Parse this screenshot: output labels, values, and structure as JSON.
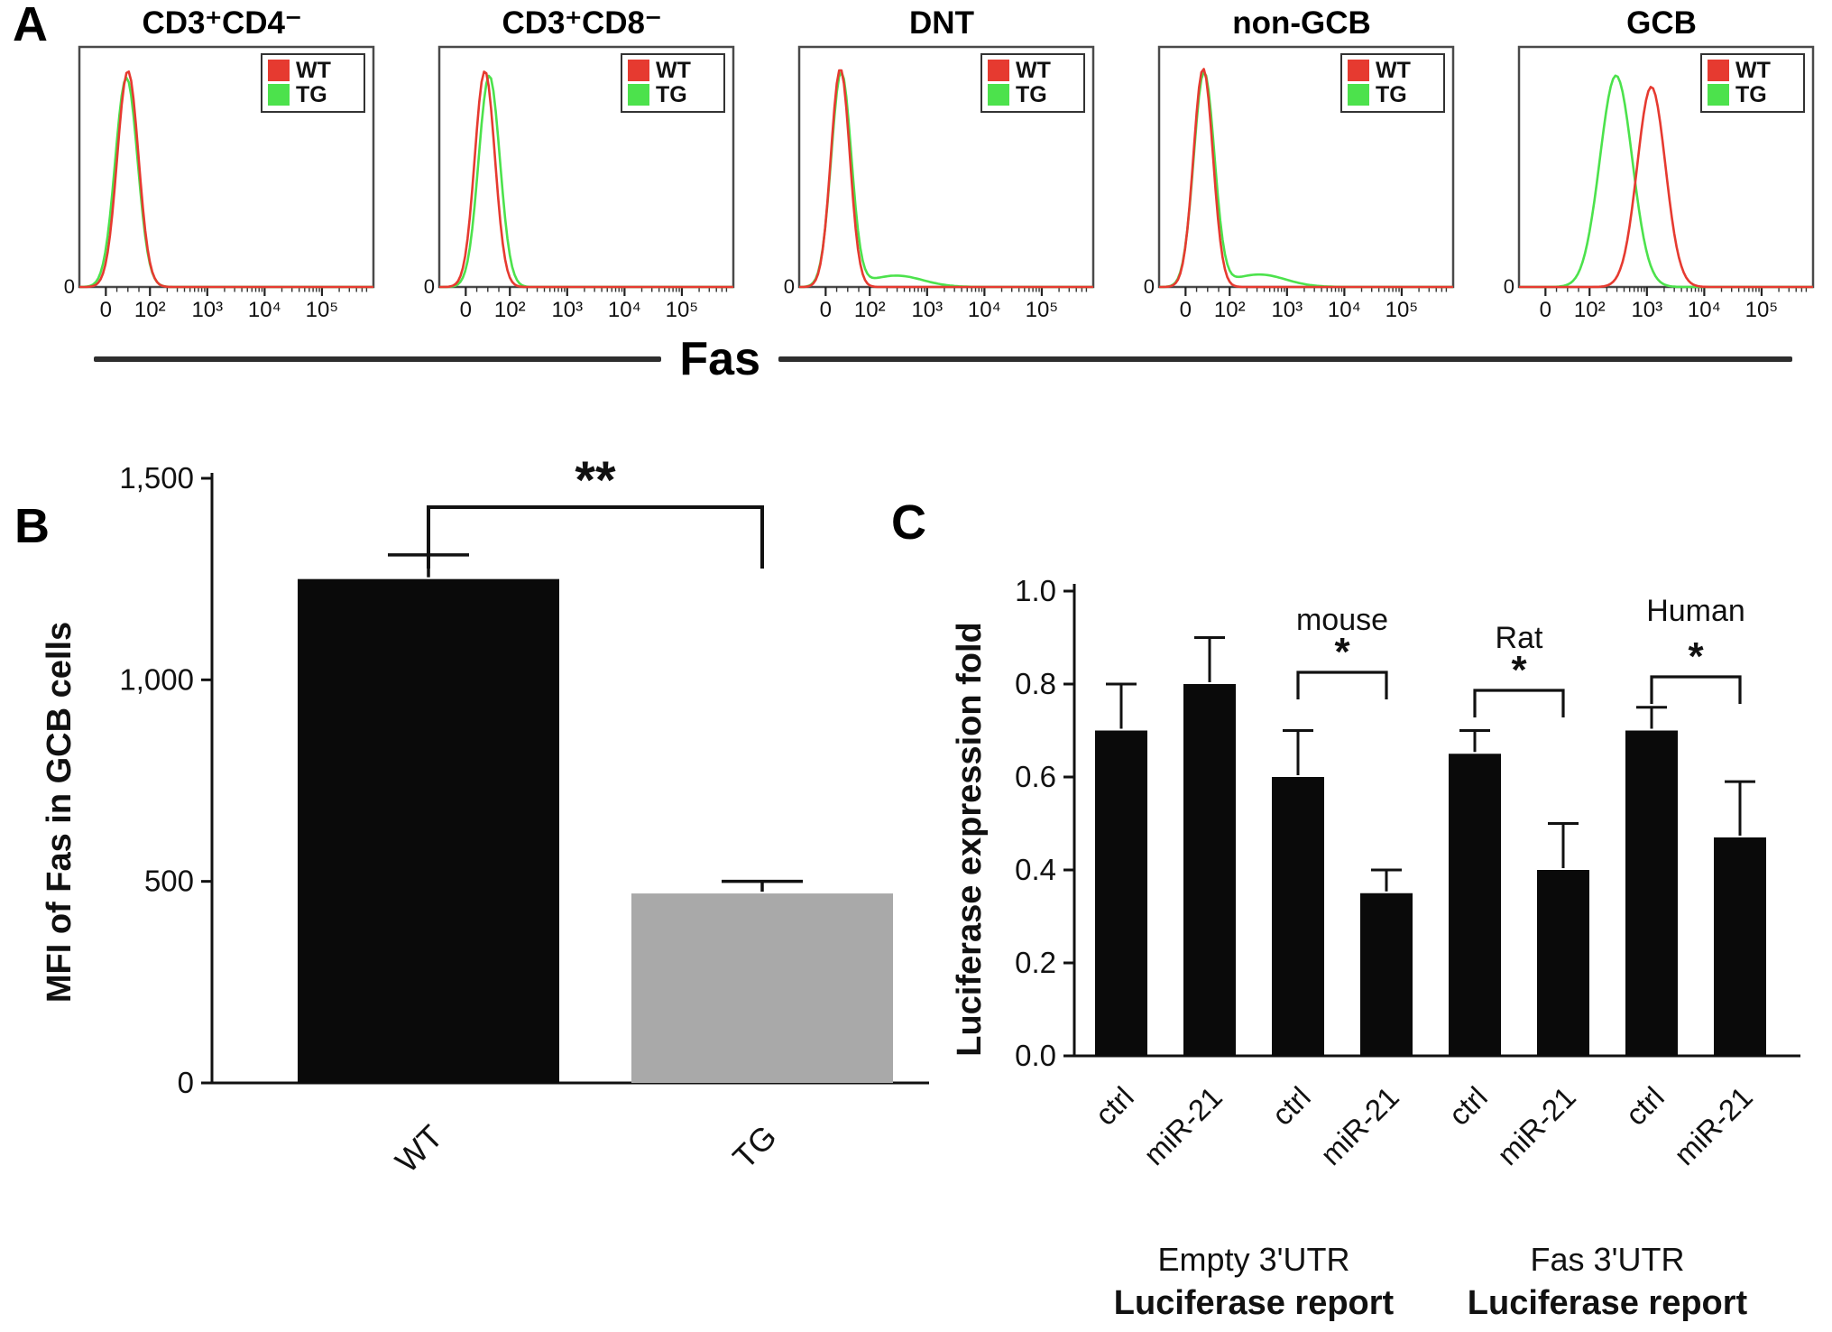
{
  "panels": {
    "a": {
      "label": "A",
      "xlabel": "Fas"
    },
    "b": {
      "label": "B"
    },
    "c": {
      "label": "C"
    }
  },
  "chart_data": [
    {
      "type": "area",
      "panel": "A",
      "xlabel": "Fas",
      "xticks": [
        "0",
        "10²",
        "10³",
        "10⁴",
        "10⁵"
      ],
      "xtick_pos": [
        9,
        24,
        43.5,
        63,
        82.5
      ],
      "ylabel_zero": "0",
      "legend": [
        {
          "name": "WT",
          "color": "#e63a30"
        },
        {
          "name": "TG",
          "color": "#4ce24c"
        }
      ],
      "subpanels": [
        {
          "title": "CD3⁺CD4⁻",
          "series": [
            {
              "name": "WT",
              "color": "#e63a30",
              "components": [
                {
                  "c": 16.5,
                  "w": 3.6,
                  "h": 0.95
                }
              ]
            },
            {
              "name": "TG",
              "color": "#4ce24c",
              "components": [
                {
                  "c": 16.0,
                  "w": 3.8,
                  "h": 0.92
                }
              ]
            }
          ]
        },
        {
          "title": "CD3⁺CD8⁻",
          "series": [
            {
              "name": "WT",
              "color": "#e63a30",
              "components": [
                {
                  "c": 15.5,
                  "w": 3.4,
                  "h": 0.95
                }
              ]
            },
            {
              "name": "TG",
              "color": "#4ce24c",
              "components": [
                {
                  "c": 17.0,
                  "w": 3.6,
                  "h": 0.93
                }
              ]
            }
          ]
        },
        {
          "title": "DNT",
          "series": [
            {
              "name": "WT",
              "color": "#e63a30",
              "components": [
                {
                  "c": 14.0,
                  "w": 3.2,
                  "h": 0.96
                }
              ]
            },
            {
              "name": "TG",
              "color": "#4ce24c",
              "components": [
                {
                  "c": 14.3,
                  "w": 3.4,
                  "h": 0.94
                },
                {
                  "c": 33,
                  "w": 9,
                  "h": 0.05
                }
              ]
            }
          ]
        },
        {
          "title": "non-GCB",
          "series": [
            {
              "name": "WT",
              "color": "#e63a30",
              "components": [
                {
                  "c": 15.0,
                  "w": 3.3,
                  "h": 0.96
                }
              ]
            },
            {
              "name": "TG",
              "color": "#4ce24c",
              "components": [
                {
                  "c": 15.3,
                  "w": 3.5,
                  "h": 0.94
                },
                {
                  "c": 34,
                  "w": 9,
                  "h": 0.055
                }
              ]
            }
          ]
        },
        {
          "title": "GCB",
          "series": [
            {
              "name": "WT",
              "color": "#e63a30",
              "components": [
                {
                  "c": 45,
                  "w": 4.8,
                  "h": 0.88
                }
              ]
            },
            {
              "name": "TG",
              "color": "#4ce24c",
              "components": [
                {
                  "c": 33,
                  "w": 5.5,
                  "h": 0.93
                }
              ]
            }
          ]
        }
      ]
    },
    {
      "type": "bar",
      "panel": "B",
      "ylabel": "MFI of Fas in GCB cells",
      "categories": [
        "WT",
        "TG"
      ],
      "values": [
        1250,
        470
      ],
      "errors": [
        60,
        30
      ],
      "bar_colors": [
        "#0a0a0a",
        "#a9a9a9"
      ],
      "ylim": [
        0,
        1500
      ],
      "yticks": [
        0,
        500,
        1000,
        1500
      ],
      "ytick_labels": [
        "0",
        "500",
        "1,000",
        "1,500"
      ],
      "significance": {
        "label": "**",
        "between": [
          0,
          1
        ]
      }
    },
    {
      "type": "bar",
      "panel": "C",
      "ylabel": "Luciferase expression fold",
      "categories": [
        "ctrl",
        "miR-21",
        "ctrl",
        "miR-21",
        "ctrl",
        "miR-21",
        "ctrl",
        "miR-21"
      ],
      "values": [
        0.7,
        0.8,
        0.6,
        0.35,
        0.65,
        0.4,
        0.7,
        0.47
      ],
      "errors": [
        0.1,
        0.1,
        0.1,
        0.05,
        0.05,
        0.1,
        0.05,
        0.12
      ],
      "bar_color": "#0a0a0a",
      "ylim": [
        0,
        1.0
      ],
      "yticks": [
        0,
        0.2,
        0.4,
        0.6,
        0.8,
        1.0
      ],
      "ytick_labels": [
        "0.0",
        "0.2",
        "0.4",
        "0.6",
        "0.8",
        "1.0"
      ],
      "annotations": [
        {
          "label": "mouse",
          "sig": "*",
          "between": [
            2,
            3
          ]
        },
        {
          "label": "Rat",
          "sig": "*",
          "between": [
            4,
            5
          ]
        },
        {
          "label": "Human",
          "sig": "*",
          "between": [
            6,
            7
          ]
        }
      ],
      "group_labels": [
        {
          "line1": "Empty 3'UTR",
          "line2": "Luciferase report",
          "span": [
            0,
            3
          ]
        },
        {
          "line1": "Fas 3'UTR",
          "line2": "Luciferase report",
          "span": [
            4,
            7
          ]
        }
      ]
    }
  ]
}
